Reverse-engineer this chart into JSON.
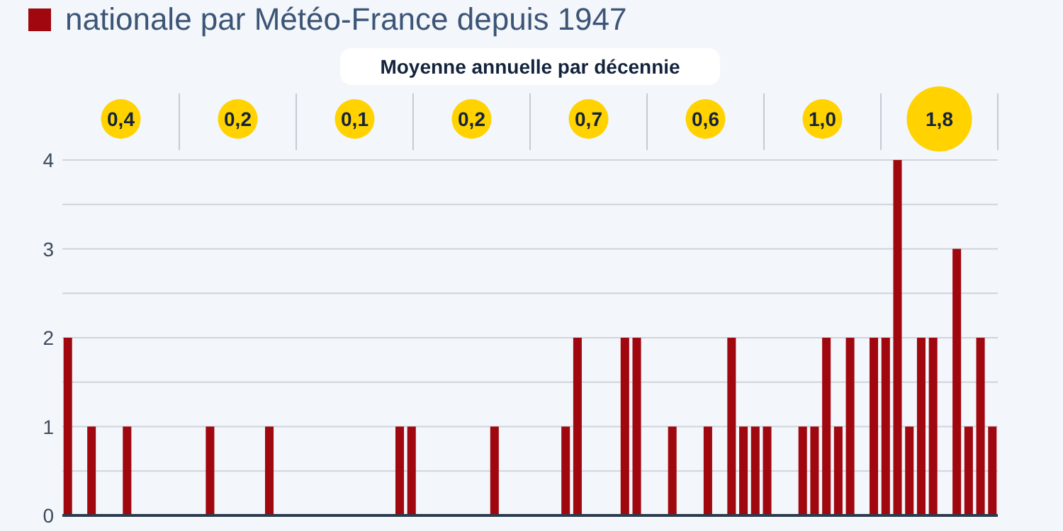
{
  "chart_data": {
    "type": "bar",
    "legend": "top left",
    "categories": [
      null,
      null,
      null,
      null,
      null,
      null,
      null,
      null,
      null,
      null,
      null,
      null,
      null,
      null,
      null,
      null,
      null,
      null,
      null,
      null,
      null,
      null,
      null,
      null,
      null,
      null,
      null,
      null,
      null,
      null,
      null,
      null,
      null,
      null,
      null,
      null,
      null,
      null,
      null,
      null,
      null,
      null,
      null,
      null,
      null,
      null,
      null,
      null,
      null,
      null,
      null,
      null,
      null,
      null,
      null,
      null,
      null,
      null,
      null,
      null,
      null,
      null,
      null,
      null,
      null,
      null,
      null,
      null,
      null,
      null,
      null,
      null,
      null,
      null,
      null,
      null,
      null,
      null,
      null
    ],
    "series": [
      {
        "name": "nationale par Météo-France depuis 1947",
        "color": "#a0070f",
        "values": [
          2,
          0,
          1,
          0,
          0,
          1,
          0,
          0,
          0,
          0,
          0,
          0,
          1,
          0,
          0,
          0,
          0,
          1,
          0,
          0,
          0,
          0,
          0,
          0,
          0,
          0,
          0,
          0,
          1,
          1,
          0,
          0,
          0,
          0,
          0,
          0,
          1,
          0,
          0,
          0,
          0,
          0,
          1,
          2,
          0,
          0,
          0,
          2,
          2,
          0,
          0,
          1,
          0,
          0,
          1,
          0,
          2,
          1,
          1,
          1,
          0,
          0,
          1,
          1,
          2,
          1,
          2,
          0,
          2,
          2,
          4,
          1,
          2,
          2,
          0,
          3,
          1,
          2,
          1
        ]
      }
    ],
    "ylim": [
      0,
      4
    ],
    "yticks": [
      0,
      {
        "value": 0.5,
        "label": null
      },
      1,
      {
        "value": 1.5,
        "label": null
      },
      2,
      {
        "value": 2.5,
        "label": null
      },
      3,
      {
        "value": 3.5,
        "label": null
      },
      4
    ],
    "grid": "y",
    "annotations": [
      "Moyenne annuelle par décennie",
      "0,4",
      "0,2",
      "0,1",
      "0,2",
      "0,7",
      "0,6",
      "1,0",
      "1,8"
    ]
  }
}
